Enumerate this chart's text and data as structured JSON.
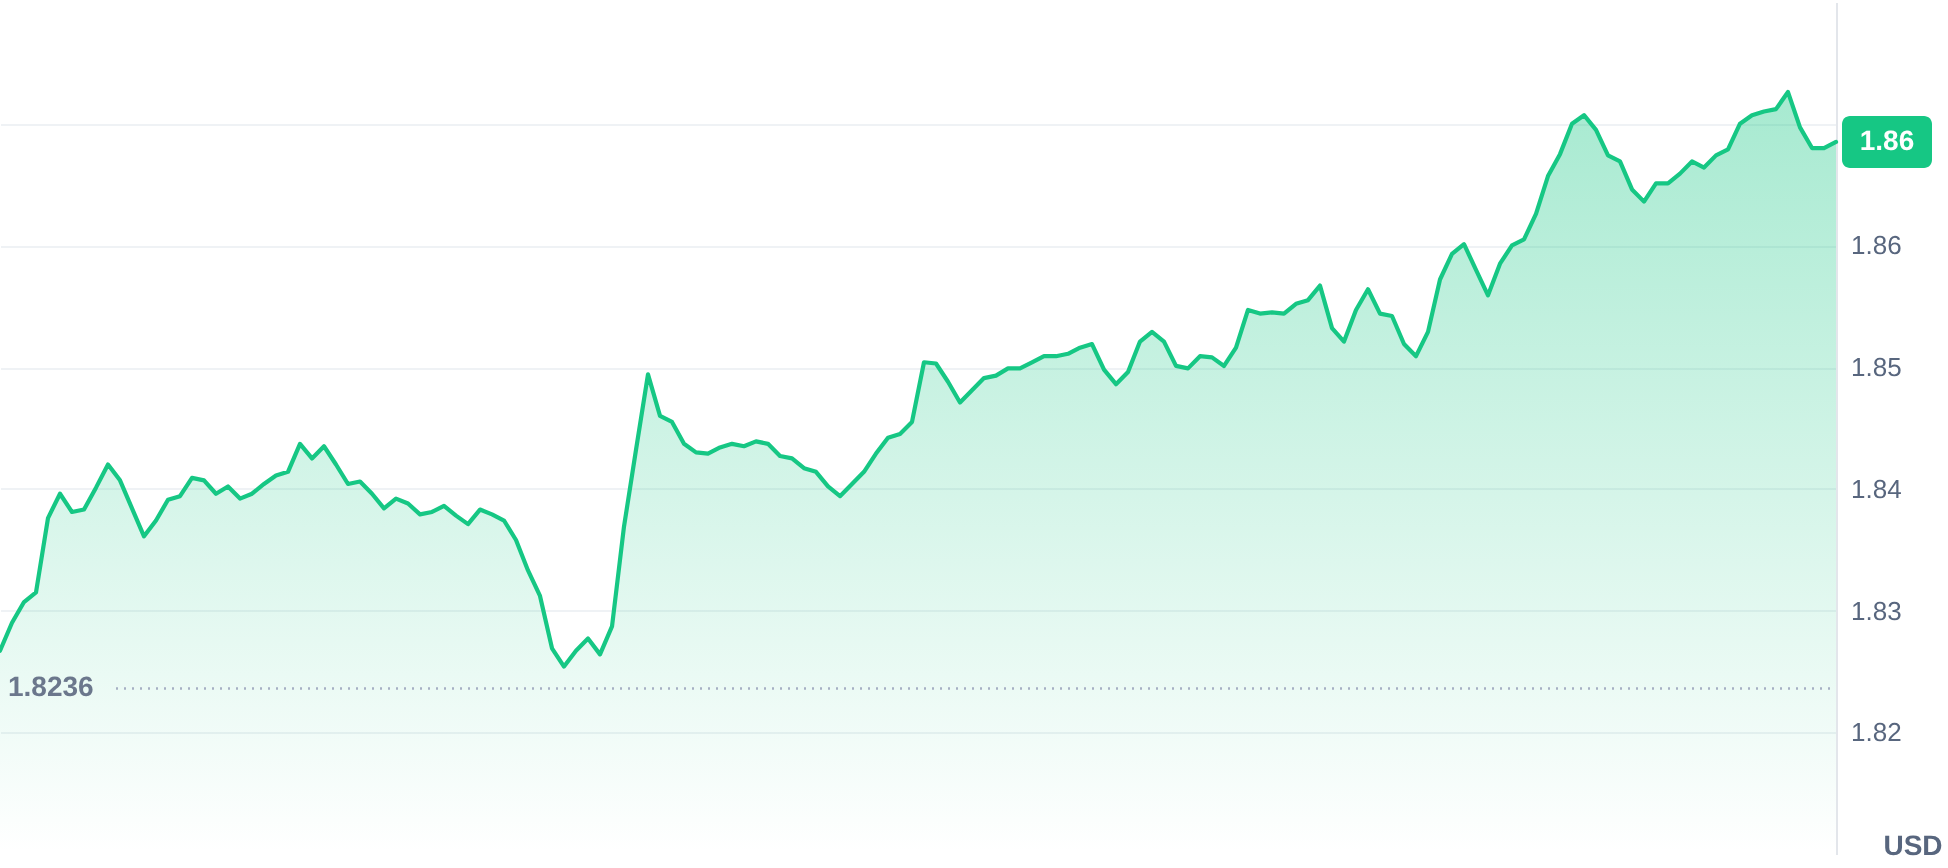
{
  "chart_data": {
    "type": "area",
    "ylabel": "USD",
    "categories": [
      null,
      null,
      null,
      null,
      null,
      null,
      null,
      null,
      null,
      null,
      null,
      null,
      null,
      null,
      null,
      null,
      null,
      null,
      null,
      null,
      null,
      null,
      null,
      null,
      null,
      null,
      null,
      null,
      null,
      null,
      null,
      null,
      null,
      null,
      null,
      null,
      null,
      null,
      null,
      null,
      null,
      null,
      null,
      null,
      null,
      null,
      null,
      null,
      null,
      null,
      null,
      null,
      null,
      null,
      null,
      null,
      null,
      null,
      null,
      null,
      null,
      null,
      null,
      null,
      null,
      null,
      null,
      null,
      null,
      null,
      null,
      null,
      null,
      null,
      null,
      null,
      null,
      null,
      null,
      null,
      null,
      null,
      null,
      null,
      null,
      null,
      null,
      null,
      null,
      null,
      null,
      null,
      null,
      null,
      null,
      null,
      null,
      null,
      null,
      null,
      null,
      null,
      null,
      null,
      null,
      null,
      null,
      null,
      null,
      null,
      null,
      null,
      null,
      null,
      null,
      null,
      null,
      null,
      null,
      null,
      null,
      null,
      null,
      null,
      null,
      null,
      null,
      null,
      null,
      null,
      null,
      null,
      null,
      null,
      null,
      null,
      null,
      null,
      null,
      null,
      null,
      null,
      null,
      null,
      null,
      null,
      null,
      null,
      null,
      null,
      null,
      null,
      null,
      null
    ],
    "values": [
      1.8267,
      1.829,
      1.8307,
      1.8315,
      1.8376,
      1.8396,
      1.8381,
      1.8383,
      1.8401,
      1.842,
      1.8407,
      1.8384,
      1.8361,
      1.8374,
      1.8391,
      1.8394,
      1.8409,
      1.8407,
      1.8396,
      1.8402,
      1.8392,
      1.8396,
      1.8404,
      1.8411,
      1.8414,
      1.8437,
      1.8425,
      1.8435,
      1.842,
      1.8404,
      1.8406,
      1.8396,
      1.8384,
      1.8392,
      1.8388,
      1.8379,
      1.8381,
      1.8386,
      1.8378,
      1.8371,
      1.8383,
      1.8379,
      1.8374,
      1.8358,
      1.8333,
      1.8312,
      1.8269,
      1.8254,
      1.8267,
      1.8277,
      1.8264,
      1.8287,
      1.8369,
      1.8432,
      1.8494,
      1.846,
      1.8455,
      1.8437,
      1.843,
      1.8429,
      1.8434,
      1.8437,
      1.8435,
      1.8439,
      1.8437,
      1.8427,
      1.8425,
      1.8417,
      1.8414,
      1.8402,
      1.8394,
      1.8404,
      1.8414,
      1.8429,
      1.8442,
      1.8445,
      1.8455,
      1.8504,
      1.8503,
      1.8488,
      1.8471,
      1.8481,
      1.8491,
      1.8493,
      1.8499,
      1.8499,
      1.8504,
      1.8509,
      1.8509,
      1.8511,
      1.8516,
      1.8519,
      1.8498,
      1.8486,
      1.8496,
      1.8521,
      1.8529,
      1.8521,
      1.8501,
      1.8499,
      1.8509,
      1.8508,
      1.8501,
      1.8516,
      1.8547,
      1.8544,
      1.8545,
      1.8544,
      1.8552,
      1.8555,
      1.8567,
      1.8532,
      1.8521,
      1.8547,
      1.8564,
      1.8544,
      1.8542,
      1.8519,
      1.8509,
      1.8529,
      1.8572,
      1.8593,
      1.8601,
      1.858,
      1.8559,
      1.8585,
      1.86,
      1.8605,
      1.8626,
      1.8657,
      1.8675,
      1.87,
      1.8707,
      1.8695,
      1.8674,
      1.8669,
      1.8646,
      1.8636,
      1.8651,
      1.8651,
      1.8659,
      1.8669,
      1.8664,
      1.8674,
      1.8679,
      1.87,
      1.8707,
      1.871,
      1.8712,
      1.8726,
      1.8697,
      1.868,
      1.868,
      1.8685
    ],
    "color": "#16c784",
    "ylim": [
      1.81,
      1.88
    ],
    "yticks": [
      1.82,
      1.83,
      1.84,
      1.85,
      1.86,
      {
        "value": 1.87,
        "label": null
      }
    ],
    "grid": "y",
    "tick_labels": "y",
    "ref_lines": [
      {
        "axis": "y",
        "value": 1.8236,
        "label": "1.8236",
        "color": "#a6b0c3",
        "line_style": "dotted"
      }
    ],
    "annotations": [
      "1.86"
    ]
  }
}
